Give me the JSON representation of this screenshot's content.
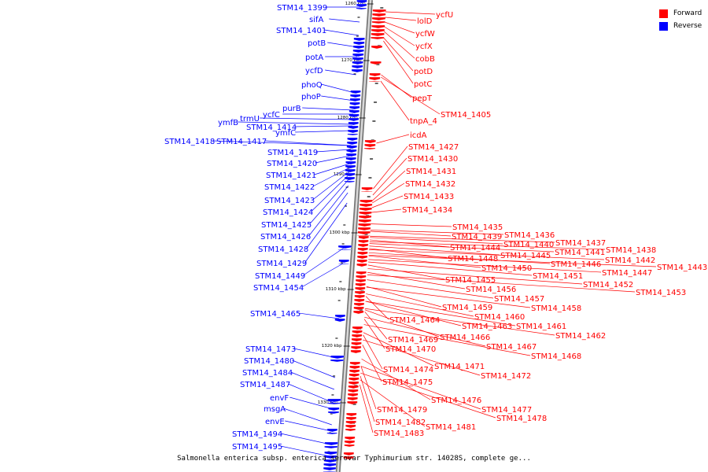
{
  "legend": {
    "forward_label": "Forward",
    "reverse_label": "Reverse",
    "forward_color": "#ff0000",
    "reverse_color": "#0000ff"
  },
  "caption": "Salmonella enterica subsp. enterica serovar Typhimurium str. 14028S, complete ge...",
  "ticks": [
    "1260 kbp",
    "1270 kbp",
    "1280 kbp",
    "1290 kbp",
    "1300 kbp",
    "1310 kbp",
    "1320 kbp",
    "1330 kbp"
  ],
  "reverse_genes": [
    "STM14_1399",
    "sifA",
    "STM14_1401",
    "potB",
    "potA",
    "ycfD",
    "phoQ",
    "phoP",
    "purB",
    "ycfC",
    "trmU",
    "ymfB",
    "STM14_1414",
    "ymfC",
    "STM14_1417",
    "STM14_1418",
    "STM14_1419",
    "STM14_1420",
    "STM14_1421",
    "STM14_1422",
    "STM14_1423",
    "STM14_1424",
    "STM14_1425",
    "STM14_1426",
    "STM14_1428",
    "STM14_1429",
    "STM14_1449",
    "STM14_1454",
    "STM14_1465",
    "STM14_1473",
    "STM14_1480",
    "STM14_1484",
    "STM14_1487",
    "envF",
    "msgA",
    "envE",
    "STM14_1494",
    "STM14_1495"
  ],
  "forward_genes": [
    "ycfU",
    "lolD",
    "ycfW",
    "ycfX",
    "cobB",
    "potD",
    "potC",
    "pepT",
    "STM14_1405",
    "tnpA_4",
    "icdA",
    "STM14_1427",
    "STM14_1430",
    "STM14_1431",
    "STM14_1432",
    "STM14_1433",
    "STM14_1434",
    "STM14_1435",
    "STM14_1436",
    "STM14_1439",
    "STM14_1437",
    "STM14_1438",
    "STM14_1440",
    "STM14_1444",
    "STM14_1441",
    "STM14_1442",
    "STM14_1443",
    "STM14_1445",
    "STM14_1448",
    "STM14_1446",
    "STM14_1447",
    "STM14_1450",
    "STM14_1451",
    "STM14_1452",
    "STM14_1453",
    "STM14_1455",
    "STM14_1456",
    "STM14_1457",
    "STM14_1458",
    "STM14_1459",
    "STM14_1460",
    "STM14_1461",
    "STM14_1462",
    "STM14_1463",
    "STM14_1464",
    "STM14_1466",
    "STM14_1467",
    "STM14_1468",
    "STM14_1469",
    "STM14_1470",
    "STM14_1471",
    "STM14_1472",
    "STM14_1474",
    "STM14_1475",
    "STM14_1476",
    "STM14_1477",
    "STM14_1478",
    "STM14_1479",
    "STM14_1481",
    "STM14_1482",
    "STM14_1483"
  ]
}
